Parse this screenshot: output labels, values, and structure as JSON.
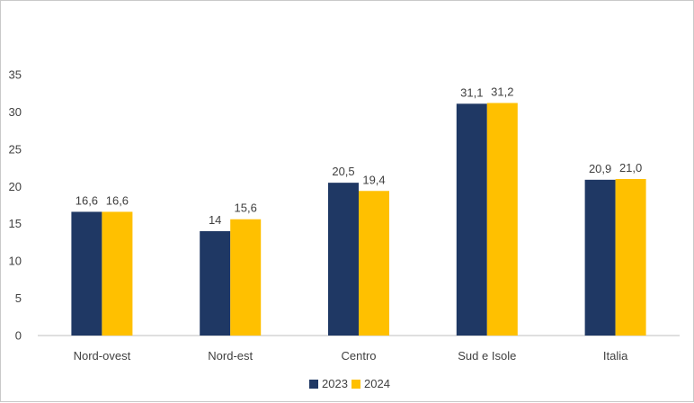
{
  "chart_data": {
    "type": "bar",
    "title": "",
    "xlabel": "",
    "ylabel": "",
    "categories": [
      "Nord-ovest",
      "Nord-est",
      "Centro",
      "Sud e Isole",
      "Italia"
    ],
    "series": [
      {
        "name": "2023",
        "values": [
          16.6,
          14,
          20.5,
          31.1,
          20.9
        ],
        "labels": [
          "16,6",
          "14",
          "20,5",
          "31,1",
          "20,9"
        ],
        "color": "#1f3864"
      },
      {
        "name": "2024",
        "values": [
          16.6,
          15.6,
          19.4,
          31.2,
          21.0
        ],
        "labels": [
          "16,6",
          "15,6",
          "19,4",
          "31,2",
          "21,0"
        ],
        "color": "#ffc000"
      }
    ],
    "ylim": [
      0,
      35
    ],
    "yticks": [
      0,
      5,
      10,
      15,
      20,
      25,
      30,
      35
    ],
    "grid": false,
    "legend": "bottom-center"
  }
}
